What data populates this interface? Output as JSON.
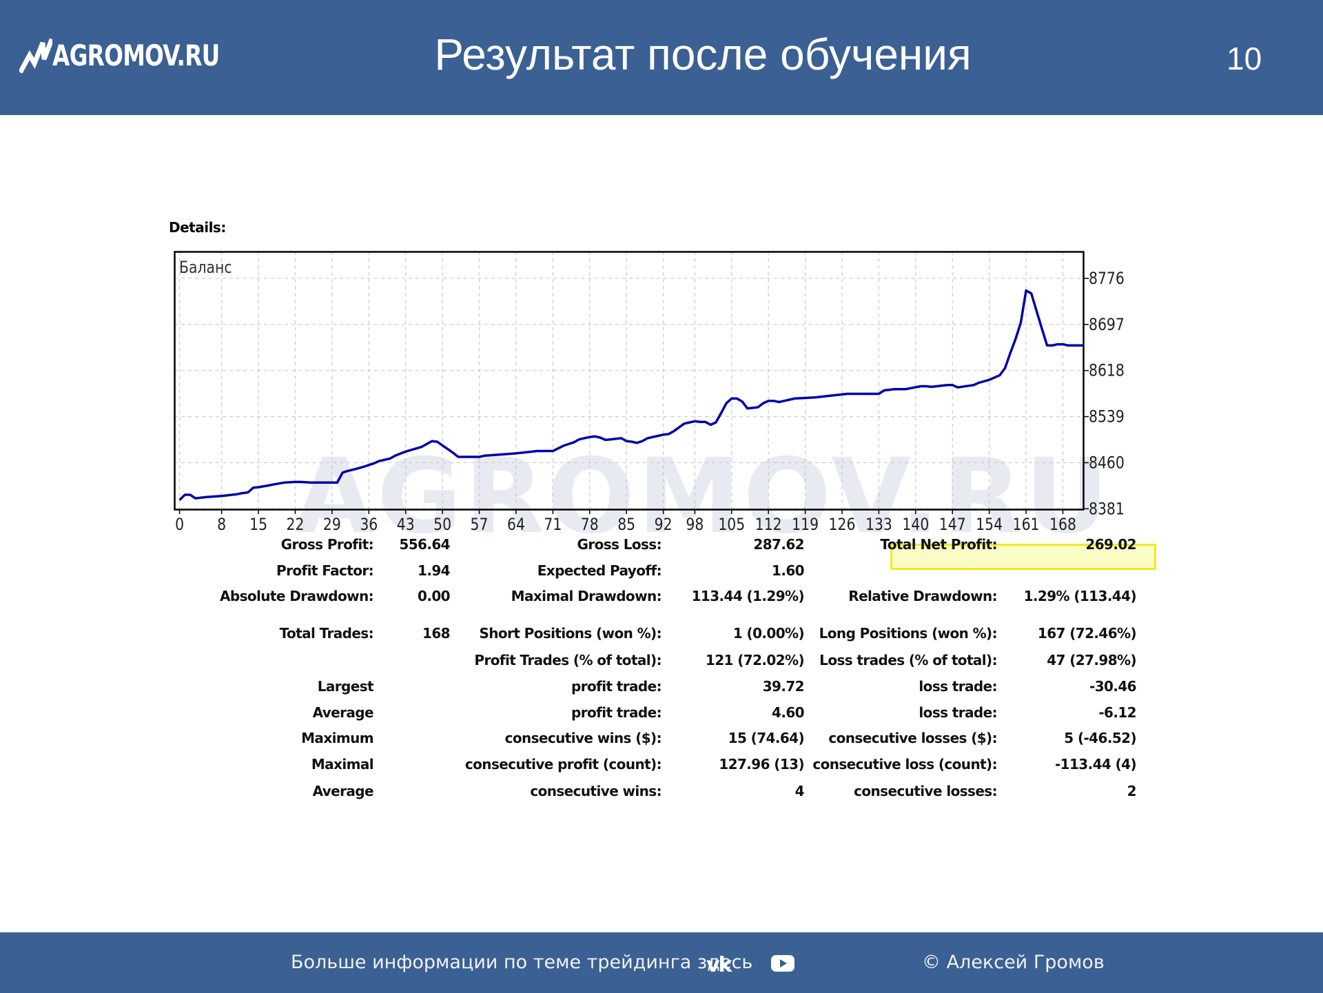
{
  "header": {
    "logo_text": "AGROMOV.RU",
    "title": "Результат после обучения",
    "page_number": "10"
  },
  "details_label": "Details:",
  "watermark": "AGROMOV.RU",
  "colors": {
    "header_bg": "#3a6094",
    "line": "#0000aa",
    "highlight_border": "#eded1e",
    "highlight_fill": "#fbfbc6"
  },
  "chart_data": {
    "type": "line",
    "legend_label": "Баланс",
    "x_ticks": [
      0,
      8,
      15,
      22,
      29,
      36,
      43,
      50,
      57,
      64,
      71,
      78,
      85,
      92,
      98,
      105,
      112,
      119,
      126,
      133,
      140,
      147,
      154,
      161,
      168
    ],
    "y_ticks": [
      8381,
      8460,
      8539,
      8618,
      8697,
      8776
    ],
    "xlim": [
      -1,
      172
    ],
    "ylim": [
      8379,
      8822
    ],
    "grid": true,
    "series": [
      {
        "x": [
          0,
          1,
          2,
          3,
          5,
          8,
          11,
          12,
          13,
          14,
          15,
          17,
          18,
          20,
          22,
          23,
          25,
          26,
          29,
          30,
          31,
          32,
          33,
          35,
          36,
          37,
          38,
          40,
          41,
          43,
          46,
          48,
          49,
          52,
          53,
          57,
          58,
          61,
          64,
          68,
          71,
          73,
          75,
          76,
          78,
          79,
          80,
          81,
          82,
          84,
          85,
          86,
          87,
          88,
          89,
          91,
          92,
          93,
          94,
          96,
          97,
          98,
          99,
          100,
          101,
          102,
          103,
          104,
          105,
          106,
          107,
          108,
          110,
          111,
          112,
          113,
          114,
          116,
          117,
          119,
          121,
          123,
          126,
          127,
          129,
          130,
          133,
          134,
          136,
          138,
          141,
          142,
          143,
          146,
          147,
          148,
          151,
          152,
          154,
          156,
          157,
          158,
          159,
          160,
          161,
          162,
          163,
          164,
          165,
          166,
          167,
          168,
          169,
          170,
          171,
          172
        ],
        "y": [
          8396,
          8405,
          8405,
          8399,
          8401,
          8403,
          8406,
          8408,
          8409,
          8417,
          8418,
          8421,
          8423,
          8426,
          8427,
          8427,
          8426,
          8426,
          8426,
          8426,
          8443,
          8446,
          8448,
          8453,
          8456,
          8459,
          8463,
          8467,
          8472,
          8479,
          8487,
          8497,
          8496,
          8477,
          8470,
          8470,
          8472,
          8474,
          8476,
          8480,
          8480,
          8489,
          8495,
          8500,
          8504,
          8505,
          8503,
          8499,
          8500,
          8502,
          8497,
          8496,
          8494,
          8497,
          8502,
          8506,
          8508,
          8509,
          8514,
          8527,
          8529,
          8531,
          8530,
          8530,
          8525,
          8529,
          8545,
          8562,
          8570,
          8570,
          8565,
          8553,
          8555,
          8562,
          8566,
          8566,
          8564,
          8568,
          8570,
          8571,
          8572,
          8574,
          8577,
          8578,
          8578,
          8578,
          8578,
          8584,
          8586,
          8586,
          8591,
          8591,
          8590,
          8593,
          8593,
          8589,
          8593,
          8597,
          8602,
          8610,
          8622,
          8648,
          8672,
          8700,
          8755,
          8750,
          8720,
          8690,
          8661,
          8661,
          8663,
          8663,
          8661,
          8661,
          8661,
          8661
        ]
      }
    ]
  },
  "stats": {
    "row1": {
      "c1_label": "Gross Profit:",
      "c1_value": "556.64",
      "c2_label": "Gross Loss:",
      "c2_value": "287.62",
      "c3_label": "Total Net Profit:",
      "c3_value": "269.02"
    },
    "row2": {
      "c1_label": "Profit Factor:",
      "c1_value": "1.94",
      "c2_label": "Expected Payoff:",
      "c2_value": "1.60"
    },
    "row3": {
      "c1_label": "Absolute Drawdown:",
      "c1_value": "0.00",
      "c2_label": "Maximal Drawdown:",
      "c2_value": "113.44 (1.29%)",
      "c3_label": "Relative Drawdown:",
      "c3_value": "1.29% (113.44)"
    },
    "row4": {
      "c1_label": "Total Trades:",
      "c1_value": "168",
      "c2_label": "Short Positions (won %):",
      "c2_value": "1 (0.00%)",
      "c3_label": "Long Positions (won %):",
      "c3_value": "167 (72.46%)"
    },
    "row5": {
      "c2_label": "Profit Trades (% of total):",
      "c2_value": "121 (72.02%)",
      "c3_label": "Loss trades (% of total):",
      "c3_value": "47 (27.98%)"
    },
    "row6": {
      "c1_label": "Largest",
      "c2_label": "profit trade:",
      "c2_value": "39.72",
      "c3_label": "loss trade:",
      "c3_value": "-30.46"
    },
    "row7": {
      "c1_label": "Average",
      "c2_label": "profit trade:",
      "c2_value": "4.60",
      "c3_label": "loss trade:",
      "c3_value": "-6.12"
    },
    "row8": {
      "c1_label": "Maximum",
      "c2_label": "consecutive wins ($):",
      "c2_value": "15 (74.64)",
      "c3_label": "consecutive losses ($):",
      "c3_value": "5 (-46.52)"
    },
    "row9": {
      "c1_label": "Maximal",
      "c2_label": "consecutive profit (count):",
      "c2_value": "127.96 (13)",
      "c3_label": "consecutive loss (count):",
      "c3_value": "-113.44 (4)"
    },
    "row10": {
      "c1_label": "Average",
      "c2_label": "consecutive wins:",
      "c2_value": "4",
      "c3_label": "consecutive losses:",
      "c3_value": "2"
    }
  },
  "footer": {
    "text": "Больше информации по теме трейдинга здесь",
    "vk_label": "vk",
    "youtube_icon": "youtube-icon",
    "copyright": "© Алексей Громов"
  }
}
